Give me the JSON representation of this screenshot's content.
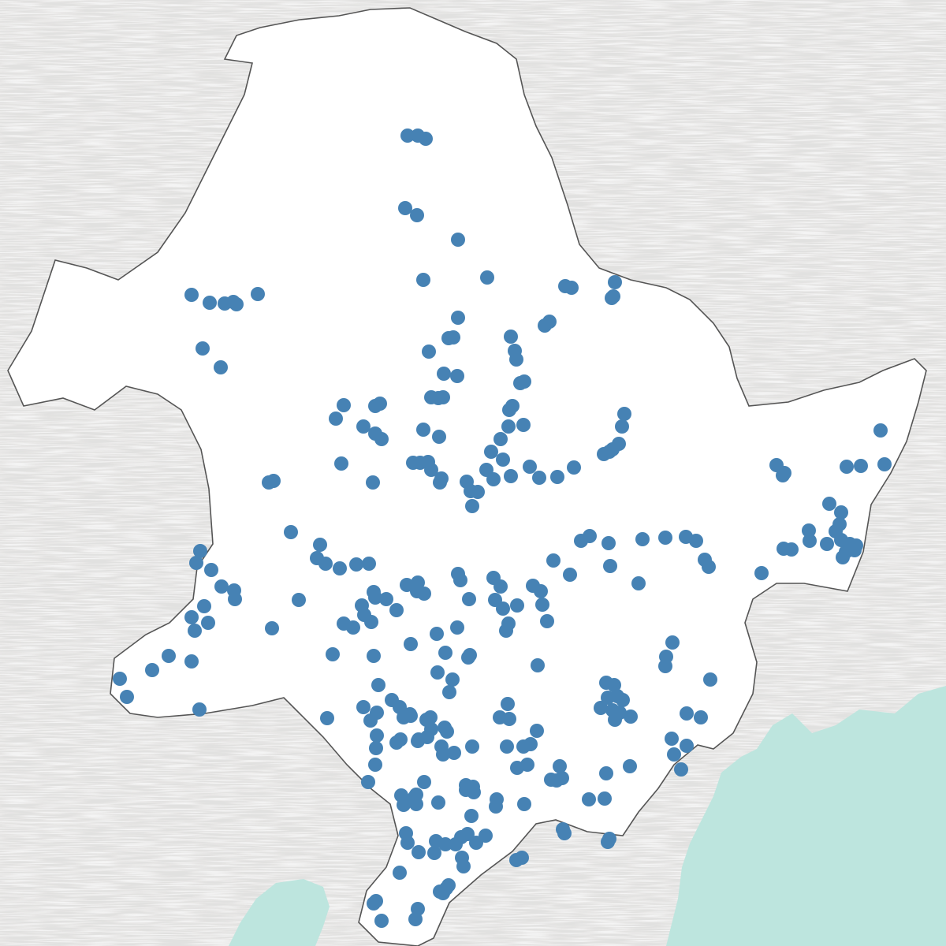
{
  "map": {
    "colors": {
      "point": "#4682b4",
      "water": "#bde5de",
      "terrain": "#c7c5c4",
      "land": "#f4f4f4",
      "inner_land": "#ffffff",
      "border": "#555555"
    },
    "layers": {
      "terrain_shading": true,
      "water_bodies": true,
      "region_border": true,
      "point_markers": true
    }
  }
}
